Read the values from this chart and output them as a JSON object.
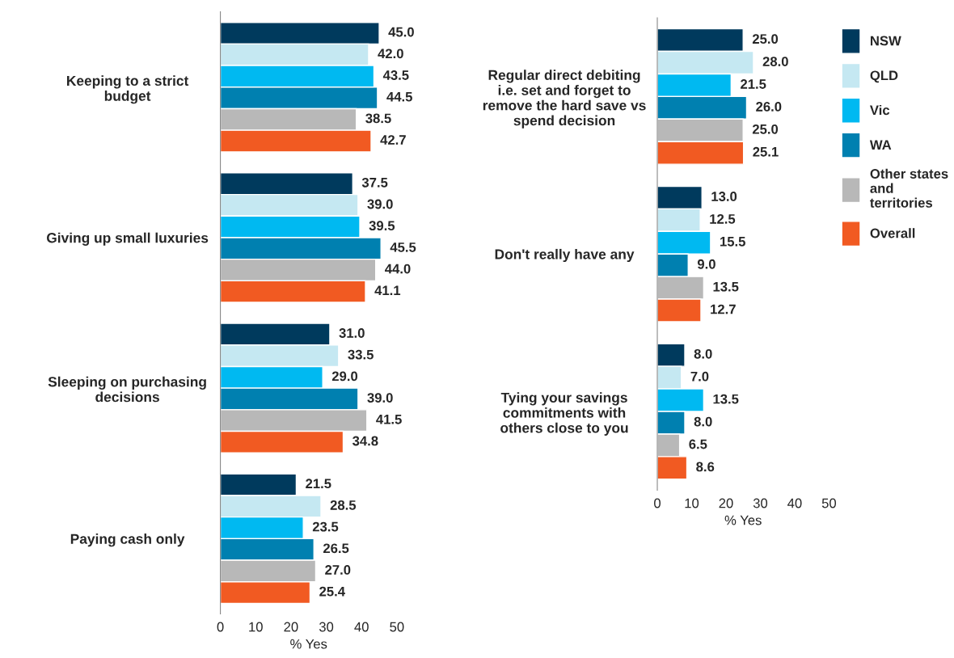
{
  "chart_data": [
    {
      "type": "bar",
      "orientation": "horizontal",
      "xlabel": "% Yes",
      "categories": [
        "Keeping to a strict\nbudget",
        "Giving up small luxuries",
        "Sleeping on purchasing\ndecisions",
        "Paying cash only"
      ],
      "xlim": [
        0,
        50
      ],
      "xticks": [
        0,
        10,
        20,
        30,
        40,
        50
      ],
      "grid": false,
      "series": [
        {
          "color": "#003a5d",
          "values": [
            45.0,
            37.5,
            31.0,
            21.5
          ],
          "value_labels": [
            "45.0",
            "37.5",
            "31.0",
            "21.5"
          ]
        },
        {
          "color": "#c5e8f2",
          "values": [
            42.0,
            39.0,
            33.5,
            28.5
          ],
          "value_labels": [
            "42.0",
            "39.0",
            "33.5",
            "28.5"
          ]
        },
        {
          "color": "#00b9f1",
          "values": [
            43.5,
            39.5,
            29.0,
            23.5
          ],
          "value_labels": [
            "43.5",
            "39.5",
            "29.0",
            "23.5"
          ]
        },
        {
          "color": "#0080b0",
          "values": [
            44.5,
            45.5,
            39.0,
            26.5
          ],
          "value_labels": [
            "44.5",
            "45.5",
            "39.0",
            "26.5"
          ]
        },
        {
          "color": "#b8b8b8",
          "values": [
            38.5,
            44.0,
            41.5,
            27.0
          ],
          "value_labels": [
            "38.5",
            "44.0",
            "41.5",
            "27.0"
          ]
        },
        {
          "color": "#f15a22",
          "values": [
            42.7,
            41.1,
            34.8,
            25.4
          ],
          "value_labels": [
            "42.7",
            "41.1",
            "34.8",
            "25.4"
          ]
        }
      ]
    },
    {
      "type": "bar",
      "orientation": "horizontal",
      "xlabel": "% Yes",
      "categories": [
        "Regular direct debiting\ni.e. set and forget to\nremove the hard save vs\nspend decision",
        "Don't really have any",
        "Tying your savings\ncommitments with\nothers close to you"
      ],
      "xlim": [
        0,
        50
      ],
      "xticks": [
        0,
        10,
        20,
        30,
        40,
        50
      ],
      "grid": false,
      "legend": "top right",
      "series": [
        {
          "name": "NSW",
          "color": "#003a5d",
          "values": [
            25.0,
            13.0,
            8.0
          ],
          "value_labels": [
            "25.0",
            "13.0",
            "8.0"
          ]
        },
        {
          "name": "QLD",
          "color": "#c5e8f2",
          "values": [
            28.0,
            12.5,
            7.0
          ],
          "value_labels": [
            "28.0",
            "12.5",
            "7.0"
          ]
        },
        {
          "name": "Vic",
          "color": "#00b9f1",
          "values": [
            21.5,
            15.5,
            13.5
          ],
          "value_labels": [
            "21.5",
            "15.5",
            "13.5"
          ]
        },
        {
          "name": "WA",
          "color": "#0080b0",
          "values": [
            26.0,
            9.0,
            8.0
          ],
          "value_labels": [
            "26.0",
            "9.0",
            "8.0"
          ]
        },
        {
          "name": "Other states\nand\nterritories",
          "color": "#b8b8b8",
          "values": [
            25.0,
            13.5,
            6.5
          ],
          "value_labels": [
            "25.0",
            "13.5",
            "6.5"
          ]
        },
        {
          "name": "Overall",
          "color": "#f15a22",
          "values": [
            25.1,
            12.7,
            8.6
          ],
          "value_labels": [
            "25.1",
            "12.7",
            "8.6"
          ]
        }
      ]
    }
  ]
}
